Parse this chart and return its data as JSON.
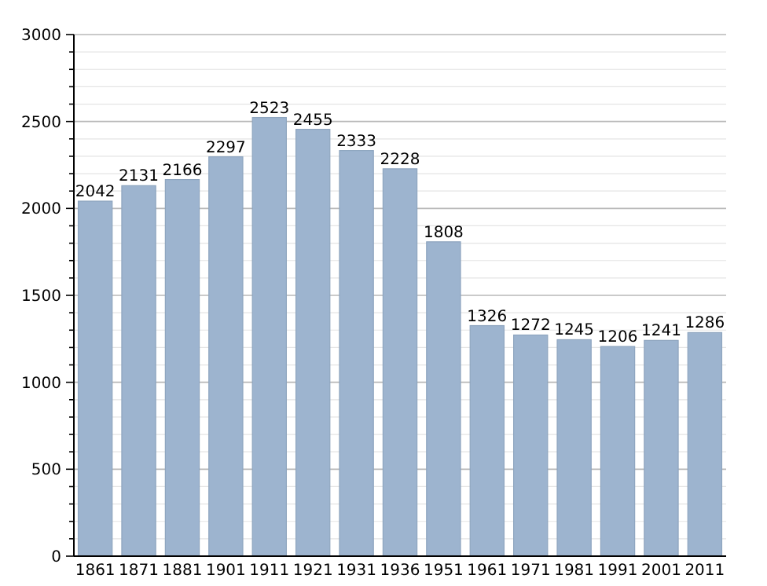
{
  "chart_data": {
    "type": "bar",
    "categories": [
      "1861",
      "1871",
      "1881",
      "1901",
      "1911",
      "1921",
      "1931",
      "1936",
      "1951",
      "1961",
      "1971",
      "1981",
      "1991",
      "2001",
      "2011"
    ],
    "values": [
      2042,
      2131,
      2166,
      2297,
      2523,
      2455,
      2333,
      2228,
      1808,
      1326,
      1272,
      1245,
      1206,
      1241,
      1286
    ],
    "color": "#9db4cf",
    "ylim": [
      0,
      3000
    ],
    "yticks": [
      0,
      {
        "value": 100,
        "label": null
      },
      {
        "value": 200,
        "label": null
      },
      {
        "value": 300,
        "label": null
      },
      {
        "value": 400,
        "label": null
      },
      500,
      {
        "value": 600,
        "label": null
      },
      {
        "value": 700,
        "label": null
      },
      {
        "value": 800,
        "label": null
      },
      {
        "value": 900,
        "label": null
      },
      1000,
      {
        "value": 1100,
        "label": null
      },
      {
        "value": 1200,
        "label": null
      },
      {
        "value": 1300,
        "label": null
      },
      {
        "value": 1400,
        "label": null
      },
      1500,
      {
        "value": 1600,
        "label": null
      },
      {
        "value": 1700,
        "label": null
      },
      {
        "value": 1800,
        "label": null
      },
      {
        "value": 1900,
        "label": null
      },
      2000,
      {
        "value": 2100,
        "label": null
      },
      {
        "value": 2200,
        "label": null
      },
      {
        "value": 2300,
        "label": null
      },
      {
        "value": 2400,
        "label": null
      },
      2500,
      {
        "value": 2600,
        "label": null
      },
      {
        "value": 2700,
        "label": null
      },
      {
        "value": 2800,
        "label": null
      },
      {
        "value": 2900,
        "label": null
      },
      3000
    ],
    "grid": "y",
    "data_labels": true
  }
}
